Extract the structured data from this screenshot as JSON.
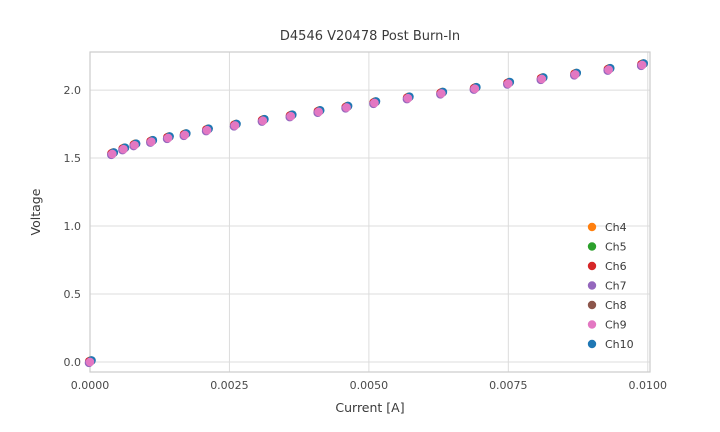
{
  "chart_data": {
    "type": "scatter",
    "title": "D4546 V20478 Post Burn-In",
    "xlabel": "Current [A]",
    "ylabel": "Voltage",
    "xlim": [
      0.0,
      0.01004
    ],
    "ylim": [
      -0.074,
      2.28
    ],
    "xticks": [
      0.0,
      0.0025,
      0.005,
      0.0075,
      0.01
    ],
    "xtick_labels": [
      "0.0000",
      "0.0025",
      "0.0050",
      "0.0075",
      "0.0100"
    ],
    "yticks": [
      0.0,
      0.5,
      1.0,
      1.5,
      2.0
    ],
    "ytick_labels": [
      "0.0",
      "0.5",
      "1.0",
      "1.5",
      "2.0"
    ],
    "grid": true,
    "legend_position": "lower right",
    "x": [
      0.0,
      0.0004,
      0.0006,
      0.0008,
      0.0011,
      0.0014,
      0.0017,
      0.0021,
      0.0026,
      0.0031,
      0.0036,
      0.0041,
      0.0046,
      0.0051,
      0.0057,
      0.0063,
      0.0069,
      0.0075,
      0.0081,
      0.0087,
      0.0093,
      0.0099
    ],
    "series": [
      {
        "name": "Ch4",
        "color": "#ff7f0e",
        "values": [
          0.0,
          1.53,
          1.565,
          1.595,
          1.62,
          1.648,
          1.67,
          1.705,
          1.74,
          1.775,
          1.808,
          1.84,
          1.872,
          1.905,
          1.94,
          1.975,
          2.01,
          2.048,
          2.082,
          2.115,
          2.15,
          2.185
        ]
      },
      {
        "name": "Ch5",
        "color": "#2ca02c",
        "values": [
          0.0,
          1.53,
          1.565,
          1.595,
          1.62,
          1.648,
          1.67,
          1.705,
          1.74,
          1.775,
          1.808,
          1.84,
          1.872,
          1.905,
          1.94,
          1.975,
          2.01,
          2.048,
          2.082,
          2.115,
          2.15,
          2.185
        ]
      },
      {
        "name": "Ch6",
        "color": "#d62728",
        "values": [
          0.0,
          1.53,
          1.565,
          1.595,
          1.62,
          1.648,
          1.67,
          1.705,
          1.74,
          1.775,
          1.808,
          1.84,
          1.872,
          1.905,
          1.94,
          1.975,
          2.01,
          2.048,
          2.082,
          2.115,
          2.15,
          2.185
        ]
      },
      {
        "name": "Ch7",
        "color": "#9467bd",
        "values": [
          0.0,
          1.53,
          1.565,
          1.595,
          1.62,
          1.648,
          1.67,
          1.705,
          1.74,
          1.775,
          1.808,
          1.84,
          1.872,
          1.905,
          1.94,
          1.975,
          2.01,
          2.048,
          2.082,
          2.115,
          2.15,
          2.185
        ]
      },
      {
        "name": "Ch8",
        "color": "#8c564b",
        "values": [
          0.0,
          1.53,
          1.565,
          1.595,
          1.62,
          1.648,
          1.67,
          1.705,
          1.74,
          1.775,
          1.808,
          1.84,
          1.872,
          1.905,
          1.94,
          1.975,
          2.01,
          2.048,
          2.082,
          2.115,
          2.15,
          2.185
        ]
      },
      {
        "name": "Ch9",
        "color": "#e377c2",
        "values": [
          0.0,
          1.53,
          1.565,
          1.595,
          1.62,
          1.648,
          1.67,
          1.705,
          1.74,
          1.775,
          1.808,
          1.84,
          1.872,
          1.905,
          1.94,
          1.975,
          2.01,
          2.048,
          2.082,
          2.115,
          2.15,
          2.185
        ]
      },
      {
        "name": "Ch10",
        "color": "#1f77b4",
        "values": [
          0.0,
          1.53,
          1.565,
          1.595,
          1.62,
          1.648,
          1.67,
          1.705,
          1.74,
          1.775,
          1.808,
          1.84,
          1.872,
          1.905,
          1.94,
          1.975,
          2.01,
          2.048,
          2.082,
          2.115,
          2.15,
          2.185
        ]
      }
    ],
    "style": {
      "grid_color": "#dcdcdc",
      "spine_color": "#cccccc",
      "background": "#ffffff"
    }
  }
}
